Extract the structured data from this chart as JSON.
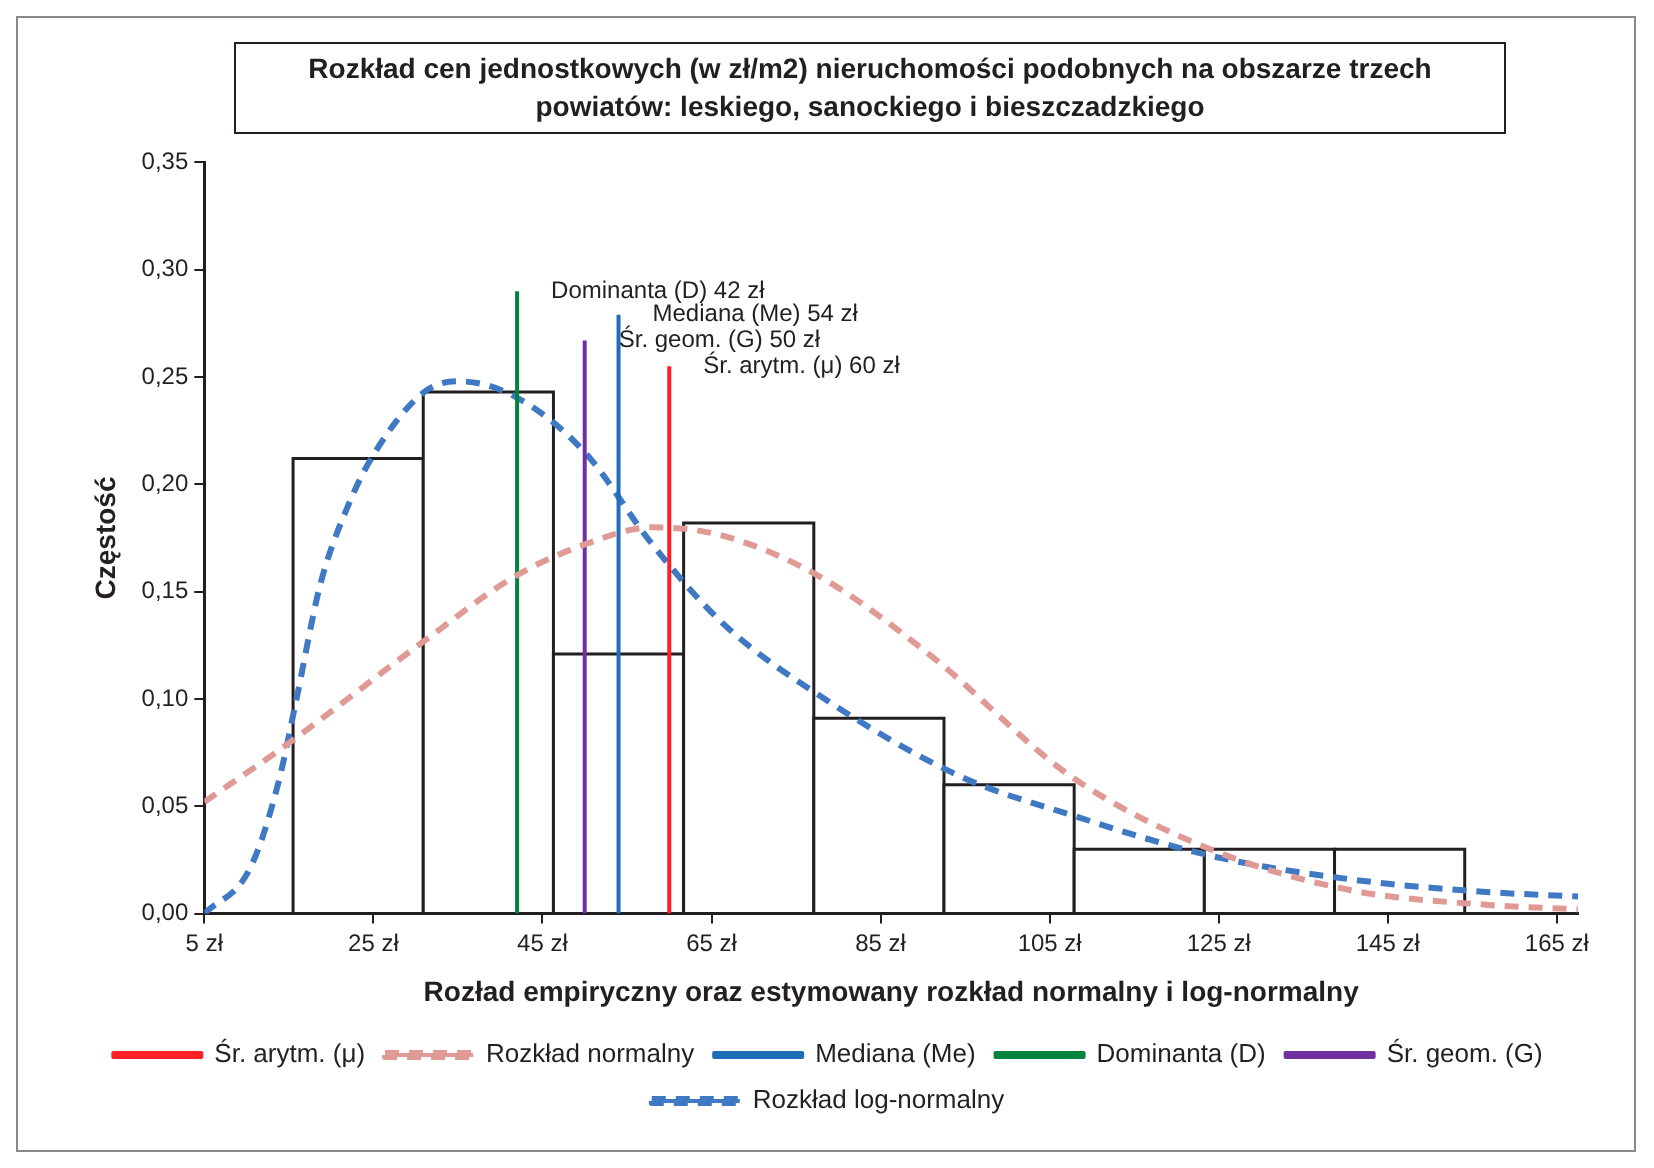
{
  "chart_data": {
    "type": "histogram",
    "title": "Rozkład cen jednostkowych (w zł/m2) nieruchomości podobnych na obszarze trzech powiatów: leskiego, sanockiego i bieszczadzkiego",
    "xlabel": "Rozład empiryczny oraz estymowany rozkład normalny i log-normalny",
    "ylabel": "Częstość",
    "bins": [
      15.5,
      30.9,
      46.3,
      61.7,
      77.1,
      92.5,
      107.9,
      123.3,
      138.7,
      154.1
    ],
    "values": [
      0.212,
      0.243,
      0.121,
      0.182,
      0.091,
      0.06,
      0.03,
      0.03,
      0.03
    ],
    "color": "#231f20",
    "series": [
      {
        "name": "Śr. arytm. (μ)",
        "type": "line",
        "color": "#ff1f26",
        "line_style": "solid",
        "x": [
          60,
          60
        ],
        "values": [
          0,
          0.255
        ]
      },
      {
        "name": "Rozkład normalny",
        "type": "line",
        "color": "#e09a96",
        "line_style": "dashed",
        "x": [
          5,
          14.5,
          31,
          41.7,
          50,
          58,
          66.4,
          77.8,
          91,
          107.5,
          124,
          140.5,
          157,
          167.5
        ],
        "values": [
          0.052,
          0.078,
          0.127,
          0.157,
          0.172,
          0.18,
          0.176,
          0.157,
          0.12,
          0.064,
          0.03,
          0.011,
          0.004,
          0.002
        ]
      },
      {
        "name": "Mediana (Me)",
        "type": "line",
        "color": "#1f6fb8",
        "line_style": "solid",
        "x": [
          54,
          54
        ],
        "values": [
          0,
          0.279
        ]
      },
      {
        "name": "Dominanta (D)",
        "type": "line",
        "color": "#00843d",
        "line_style": "solid",
        "x": [
          42,
          42
        ],
        "values": [
          0,
          0.29
        ]
      },
      {
        "name": "Śr. geom. (G)",
        "type": "line",
        "color": "#7030a0",
        "line_style": "solid",
        "x": [
          50,
          50
        ],
        "values": [
          0,
          0.267
        ]
      },
      {
        "name": "Rozkład log-normalny",
        "type": "line",
        "color": "#3f78c3",
        "line_style": "dashed",
        "x": [
          5,
          10.4,
          13.7,
          15.8,
          18.7,
          22,
          25.2,
          31,
          35,
          41.7,
          50,
          58,
          66.4,
          78,
          94.4,
          107.5,
          124,
          140.5,
          157,
          167.5
        ],
        "values": [
          0,
          0.021,
          0.06,
          0.098,
          0.153,
          0.19,
          0.215,
          0.243,
          0.248,
          0.241,
          0.215,
          0.172,
          0.135,
          0.101,
          0.064,
          0.046,
          0.027,
          0.016,
          0.01,
          0.008
        ]
      }
    ],
    "annotations": [
      {
        "text": "Dominanta (D) 42 zł",
        "x": 42,
        "y": 0.29
      },
      {
        "text": "Mediana (Me) 54 zł",
        "x": 54,
        "y": 0.279
      },
      {
        "text": "Śr. geom. (G) 50 zł",
        "x": 50,
        "y": 0.267
      },
      {
        "text": "Śr. arytm. (μ) 60 zł",
        "x": 60,
        "y": 0.255
      }
    ],
    "xlim": [
      5,
      167.5
    ],
    "xticks": [
      {
        "value": 5,
        "label": "5 zł"
      },
      {
        "value": 25,
        "label": "25 zł"
      },
      {
        "value": 45,
        "label": "45 zł"
      },
      {
        "value": 65,
        "label": "65 zł"
      },
      {
        "value": 85,
        "label": "85 zł"
      },
      {
        "value": 105,
        "label": "105 zł"
      },
      {
        "value": 125,
        "label": "125 zł"
      },
      {
        "value": 145,
        "label": "145 zł"
      },
      {
        "value": 165,
        "label": "165 zł"
      }
    ],
    "ylim": [
      0,
      0.35
    ],
    "yticks": [
      {
        "value": 0,
        "label": "0,00"
      },
      {
        "value": 0.05,
        "label": "0,05"
      },
      {
        "value": 0.1,
        "label": "0,10"
      },
      {
        "value": 0.15,
        "label": "0,15"
      },
      {
        "value": 0.2,
        "label": "0,20"
      },
      {
        "value": 0.25,
        "label": "0,25"
      },
      {
        "value": 0.3,
        "label": "0,30"
      },
      {
        "value": 0.35,
        "label": "0,35"
      }
    ],
    "legend": "bottom",
    "marker": "none"
  }
}
